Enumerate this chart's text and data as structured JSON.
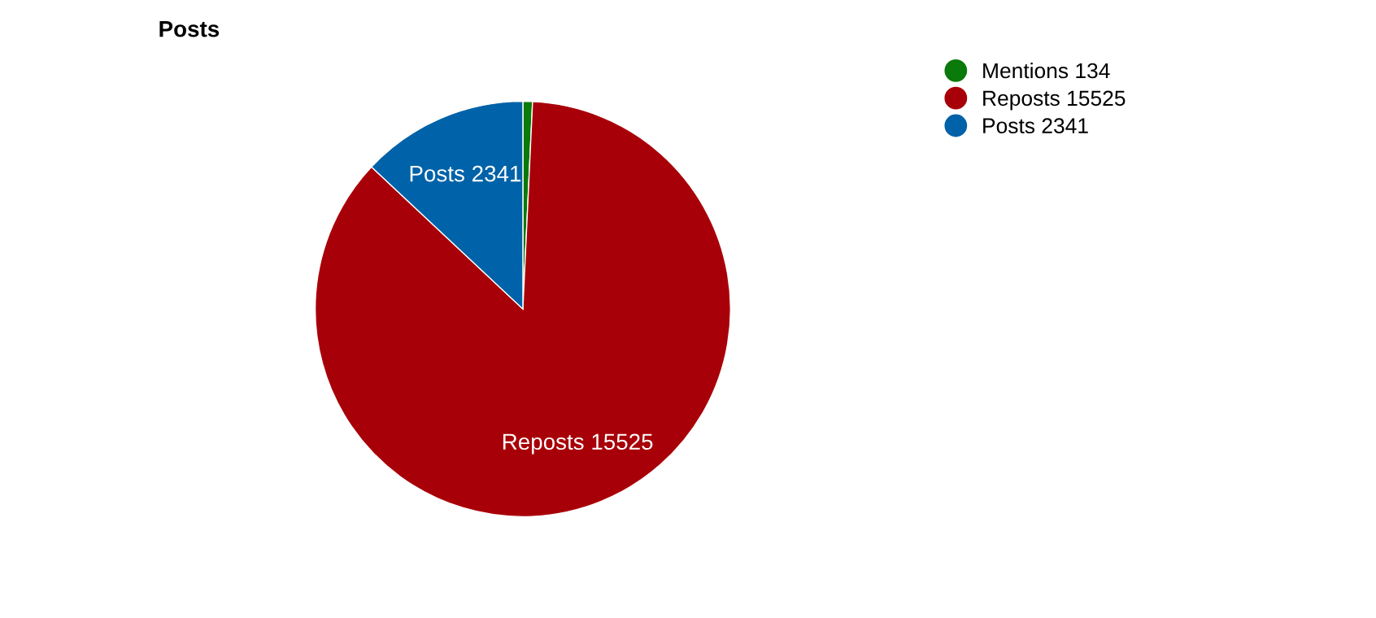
{
  "chart_data": {
    "type": "pie",
    "title": "Posts",
    "categories": [
      "Mentions 134",
      "Reposts 15525",
      "Posts 2341"
    ],
    "values": [
      134,
      15525,
      2341
    ],
    "colors": [
      "#0a7a0a",
      "#a80008",
      "#0062a8"
    ],
    "value_labels": [
      null,
      "Reposts 15525",
      "Posts 2341"
    ],
    "legend": "top right"
  }
}
